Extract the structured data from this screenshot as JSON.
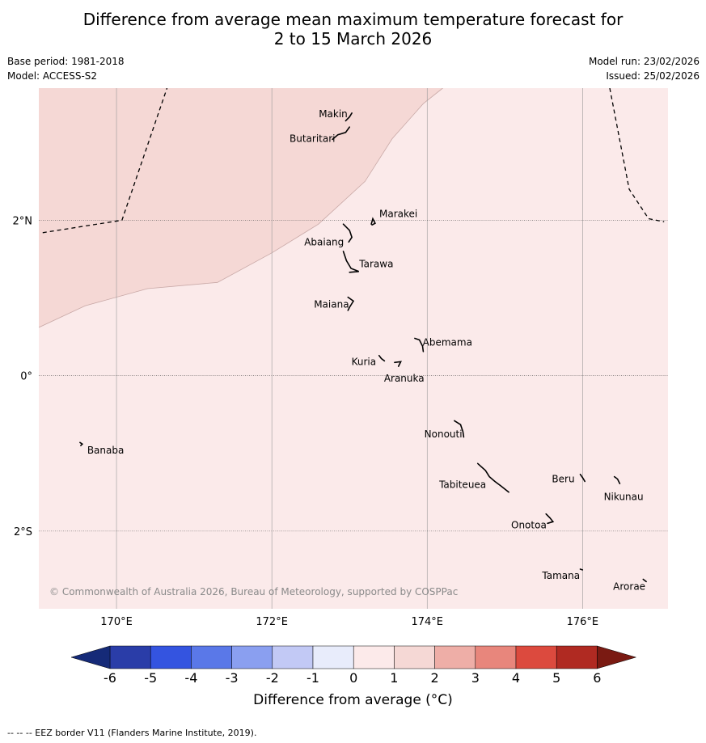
{
  "title": {
    "line1": "Difference from average mean maximum temperature forecast for",
    "line2": "2 to 15 March 2026"
  },
  "meta": {
    "base_period": "Base period: 1981-2018",
    "model": "Model: ACCESS-S2",
    "model_run": "Model run: 23/02/2026",
    "issued": "Issued: 25/02/2026"
  },
  "map": {
    "extent": {
      "lon_min": 169.0,
      "lon_max": 177.1,
      "lat_min": -3.0,
      "lat_max": 3.7
    },
    "x_ticks": [
      {
        "lon": 170,
        "label": "170°E"
      },
      {
        "lon": 172,
        "label": "172°E"
      },
      {
        "lon": 174,
        "label": "174°E"
      },
      {
        "lon": 176,
        "label": "176°E"
      }
    ],
    "y_ticks": [
      {
        "lat": 2,
        "label": "2°N"
      },
      {
        "lat": 0,
        "label": "0°"
      },
      {
        "lat": -2,
        "label": "2°S"
      }
    ],
    "colors": {
      "anomaly_0_1": "#fbeaea",
      "anomaly_1_2": "#f5d8d5",
      "boundary": "#c8a8a6",
      "grid": "#999999"
    },
    "region_1_2_boundary": [
      [
        169.0,
        0.62
      ],
      [
        169.6,
        0.9
      ],
      [
        170.4,
        1.12
      ],
      [
        171.3,
        1.2
      ],
      [
        172.0,
        1.58
      ],
      [
        172.6,
        1.95
      ],
      [
        173.2,
        2.5
      ],
      [
        173.55,
        3.05
      ],
      [
        173.95,
        3.5
      ],
      [
        174.2,
        3.7
      ]
    ],
    "eez_west": [
      [
        169.05,
        1.84
      ],
      [
        170.07,
        2.0
      ],
      [
        170.65,
        3.7
      ]
    ],
    "eez_east": [
      [
        176.35,
        3.7
      ],
      [
        176.6,
        2.4
      ],
      [
        176.85,
        2.02
      ],
      [
        177.05,
        1.98
      ]
    ],
    "copyright": "© Commonwealth of Australia 2026, Bureau of Meteorology, supported by COSPPac",
    "islands": [
      {
        "name": "Makin",
        "lon": 173.0,
        "lat": 3.38,
        "shape": [
          [
            172.95,
            3.28
          ],
          [
            173.0,
            3.33
          ],
          [
            173.03,
            3.38
          ]
        ]
      },
      {
        "name": "Butaritari",
        "lon": 172.8,
        "lat": 3.1,
        "shape": [
          [
            172.78,
            3.04
          ],
          [
            172.85,
            3.1
          ],
          [
            172.95,
            3.13
          ],
          [
            173.0,
            3.2
          ]
        ]
      },
      {
        "name": "Marakei",
        "lon": 173.3,
        "lat": 2.0,
        "shape": [
          [
            173.28,
            1.95
          ],
          [
            173.3,
            2.02
          ],
          [
            173.33,
            1.96
          ],
          [
            173.29,
            1.94
          ]
        ]
      },
      {
        "name": "Abaiang",
        "lon": 173.0,
        "lat": 1.8,
        "shape": [
          [
            172.92,
            1.95
          ],
          [
            173.0,
            1.87
          ],
          [
            173.03,
            1.78
          ],
          [
            172.99,
            1.72
          ]
        ]
      },
      {
        "name": "Tarawa",
        "lon": 172.98,
        "lat": 1.45,
        "shape": [
          [
            172.92,
            1.6
          ],
          [
            172.96,
            1.48
          ],
          [
            173.02,
            1.38
          ],
          [
            173.12,
            1.34
          ],
          [
            173.0,
            1.33
          ]
        ]
      },
      {
        "name": "Maiana",
        "lon": 173.0,
        "lat": 0.95,
        "shape": [
          [
            172.98,
            1.01
          ],
          [
            173.05,
            0.96
          ],
          [
            173.0,
            0.88
          ],
          [
            172.98,
            0.84
          ]
        ]
      },
      {
        "name": "Abemama",
        "lon": 173.9,
        "lat": 0.45,
        "shape": [
          [
            173.84,
            0.48
          ],
          [
            173.9,
            0.46
          ],
          [
            173.94,
            0.38
          ],
          [
            173.95,
            0.31
          ]
        ]
      },
      {
        "name": "Kuria",
        "lon": 173.4,
        "lat": 0.22,
        "shape": [
          [
            173.38,
            0.26
          ],
          [
            173.41,
            0.22
          ],
          [
            173.45,
            0.19
          ]
        ]
      },
      {
        "name": "Aranuka",
        "lon": 173.6,
        "lat": 0.15,
        "shape": [
          [
            173.58,
            0.17
          ],
          [
            173.66,
            0.18
          ],
          [
            173.63,
            0.12
          ]
        ]
      },
      {
        "name": "Banaba",
        "lon": 169.55,
        "lat": -0.88,
        "shape": [
          [
            169.53,
            -0.86
          ],
          [
            169.56,
            -0.88
          ],
          [
            169.54,
            -0.9
          ]
        ]
      },
      {
        "name": "Nonouti",
        "lon": 174.4,
        "lat": -0.65,
        "shape": [
          [
            174.35,
            -0.58
          ],
          [
            174.43,
            -0.63
          ],
          [
            174.46,
            -0.72
          ],
          [
            174.47,
            -0.79
          ]
        ]
      },
      {
        "name": "Tabiteuea",
        "lon": 174.8,
        "lat": -1.3,
        "shape": [
          [
            174.65,
            -1.13
          ],
          [
            174.75,
            -1.22
          ],
          [
            174.8,
            -1.3
          ],
          [
            174.87,
            -1.36
          ],
          [
            174.95,
            -1.42
          ],
          [
            175.05,
            -1.5
          ]
        ]
      },
      {
        "name": "Beru",
        "lon": 175.98,
        "lat": -1.3,
        "shape": [
          [
            175.97,
            -1.27
          ],
          [
            176.0,
            -1.31
          ],
          [
            176.03,
            -1.36
          ]
        ]
      },
      {
        "name": "Nikunau",
        "lon": 176.45,
        "lat": -1.35,
        "shape": [
          [
            176.41,
            -1.3
          ],
          [
            176.45,
            -1.33
          ],
          [
            176.48,
            -1.39
          ]
        ]
      },
      {
        "name": "Onotoa",
        "lon": 175.58,
        "lat": -1.85,
        "shape": [
          [
            175.53,
            -1.78
          ],
          [
            175.58,
            -1.83
          ],
          [
            175.62,
            -1.88
          ],
          [
            175.55,
            -1.9
          ]
        ]
      },
      {
        "name": "Tamana",
        "lon": 175.98,
        "lat": -2.5,
        "shape": [
          [
            175.97,
            -2.49
          ],
          [
            176.0,
            -2.5
          ]
        ]
      },
      {
        "name": "Arorae",
        "lon": 176.8,
        "lat": -2.65,
        "shape": [
          [
            176.78,
            -2.62
          ],
          [
            176.82,
            -2.65
          ]
        ]
      }
    ]
  },
  "colorbar": {
    "label": "Difference from average (°C)",
    "ticks": [
      "-6",
      "-5",
      "-4",
      "-3",
      "-2",
      "-1",
      "0",
      "1",
      "2",
      "3",
      "4",
      "5",
      "6"
    ],
    "colors": [
      "#2a3da8",
      "#3454e0",
      "#5a78e8",
      "#8a9ff0",
      "#c2c9f5",
      "#e8ecfb",
      "#fceaea",
      "#f5d8d5",
      "#eeaea7",
      "#e8867c",
      "#dc4a3e",
      "#b02a22"
    ],
    "under_color": "#152a78",
    "over_color": "#7a1a12"
  },
  "footer": "--  --  -- EEZ border V11 (Flanders Marine Institute, 2019)."
}
